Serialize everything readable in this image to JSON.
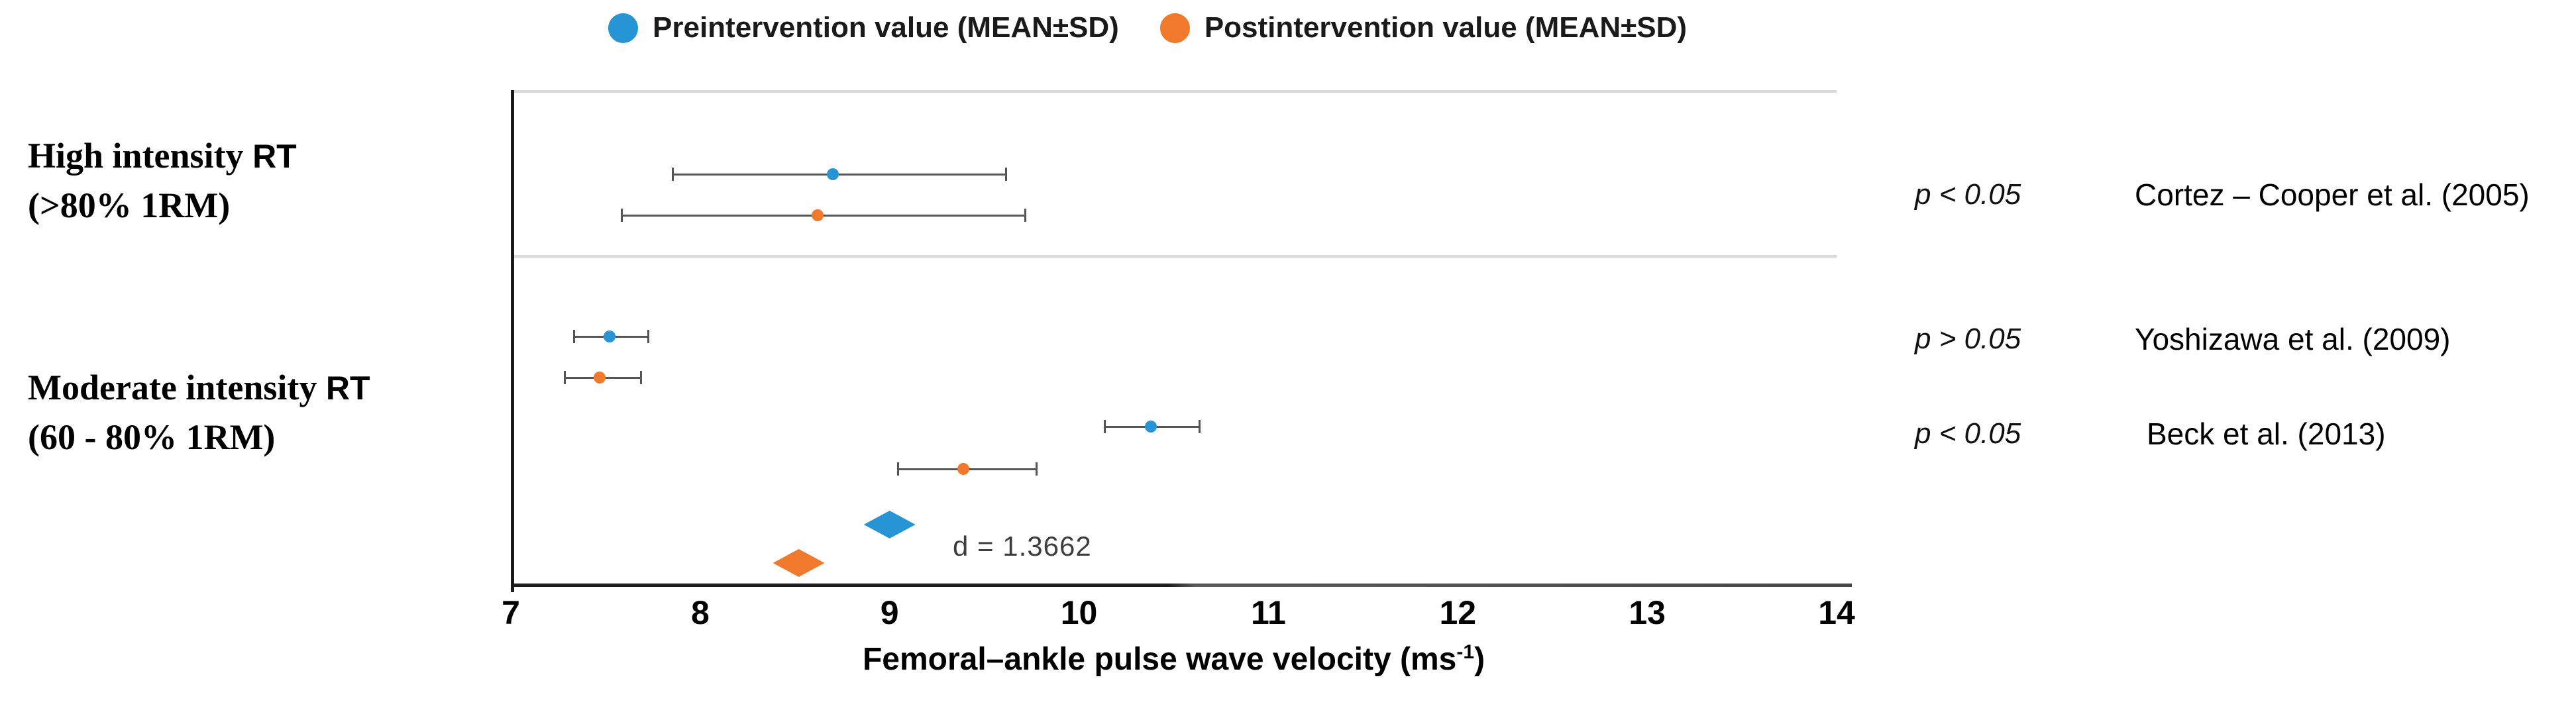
{
  "legend": {
    "pre_label": "Preintervention value (MEAN±SD)",
    "post_label": "Postintervention value (MEAN±SD)"
  },
  "groups": [
    {
      "line1_serif": "High intensity",
      "line1_sans": "RT",
      "line2": "(>80% 1RM)"
    },
    {
      "line1_serif": "Moderate intensity",
      "line1_sans": "RT",
      "line2": "(60 - 80% 1RM)"
    }
  ],
  "colors": {
    "pre": "#2795D5",
    "post": "#F0792B",
    "errorbar": "#555555",
    "gridline": "#D8D8D8",
    "axis": "#1C1C1C"
  },
  "chart_data": {
    "type": "scatter",
    "subtype": "horizontal forest plot with mean ± SD error bars and summary diamonds",
    "xlabel_base": "Femoral–ankle pulse wave velocity (ms",
    "xlabel_sup": "-1",
    "xlabel_end": ")",
    "xlim": [
      7,
      14
    ],
    "xticks": [
      7,
      8,
      9,
      10,
      11,
      12,
      13,
      14
    ],
    "grid": "top border and section divider only",
    "legend_position": "top-center",
    "series": [
      {
        "name": "Preintervention value (MEAN±SD)",
        "marker": "circle"
      },
      {
        "name": "Postintervention value (MEAN±SD)",
        "marker": "circle"
      }
    ],
    "studies": [
      {
        "citation": "Cortez – Cooper et al. (2005)",
        "p_label": "p < 0.05",
        "group": "High intensity RT (>80% 1RM)",
        "pre": {
          "mean": 8.7,
          "low": 7.85,
          "high": 9.6
        },
        "post": {
          "mean": 8.62,
          "low": 7.58,
          "high": 9.7
        }
      },
      {
        "citation": "Yoshizawa et al. (2009)",
        "p_label": "p > 0.05",
        "group": "Moderate intensity RT (60 - 80% 1RM)",
        "pre": {
          "mean": 7.52,
          "low": 7.33,
          "high": 7.71
        },
        "post": {
          "mean": 7.47,
          "low": 7.28,
          "high": 7.67
        }
      },
      {
        "citation": "Beck et al. (2013)",
        "p_label": "p < 0.05",
        "group": "Moderate intensity RT (60 - 80% 1RM)",
        "pre": {
          "mean": 10.38,
          "low": 10.13,
          "high": 10.62
        },
        "post": {
          "mean": 9.39,
          "low": 9.04,
          "high": 9.76
        }
      }
    ],
    "summary": {
      "pre_diamond_mean": 9.0,
      "post_diamond_mean": 8.52,
      "effect_size_label": "d = 1.3662"
    }
  }
}
